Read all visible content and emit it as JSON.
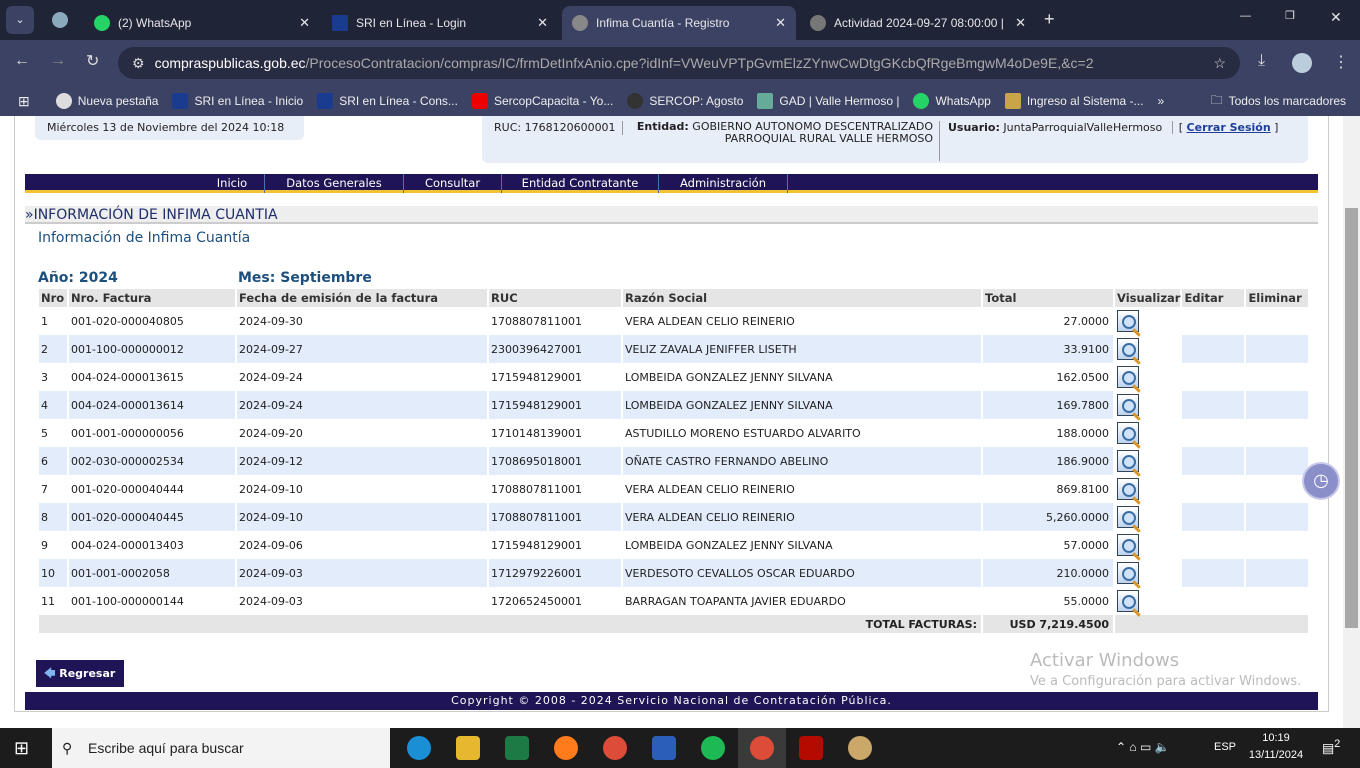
{
  "browser": {
    "tabs": [
      {
        "label": "(2) WhatsApp"
      },
      {
        "label": "SRI en Línea - Login"
      },
      {
        "label": "Infima Cuantía - Registro",
        "active": true
      },
      {
        "label": "Actividad 2024-09-27 08:00:00 |"
      }
    ],
    "url_domain": "compraspublicas.gob.ec",
    "url_path": "/ProcesoContratacion/compras/IC/frmDetInfxAnio.cpe?idInf=VWeuVPTpGvmElzZYnwCwDtgGKcbQfRgeBmgwM4oDe9E,&c=2",
    "bookmarks": [
      "Nueva pestaña",
      "SRI en Línea - Inicio",
      "SRI en Línea - Cons...",
      "SercopCapacita - Yo...",
      "SERCOP: Agosto",
      "GAD | Valle Hermoso |",
      "WhatsApp",
      "Ingreso al Sistema -..."
    ],
    "all_bookmarks": "Todos los marcadores"
  },
  "header": {
    "date": "Miércoles 13 de Noviembre del 2024 10:18",
    "ruc": "RUC: 1768120600001",
    "entidad_label": "Entidad:",
    "entidad": "GOBIERNO AUTONOMO DESCENTRALIZADO PARROQUIAL RURAL VALLE HERMOSO",
    "usuario_label": "Usuario:",
    "usuario": "JuntaParroquialValleHermoso",
    "logout": "Cerrar Sesión"
  },
  "nav": [
    "Inicio",
    "Datos Generales",
    "Consultar",
    "Entidad Contratante",
    "Administración"
  ],
  "section_title": "»INFORMACIÓN DE INFIMA CUANTIA",
  "subtitle": "Información de Infima Cuantía",
  "year": "Año: 2024",
  "month": "Mes: Septiembre",
  "columns": [
    "Nro",
    "Nro. Factura",
    "Fecha de emisión de la factura",
    "RUC",
    "Razón Social",
    "Total",
    "Visualizar",
    "Editar",
    "Eliminar"
  ],
  "rows": [
    [
      "1",
      "001-020-000040805",
      "2024-09-30",
      "1708807811001",
      "VERA ALDEAN CELIO REINERIO",
      "27.0000"
    ],
    [
      "2",
      "001-100-000000012",
      "2024-09-27",
      "2300396427001",
      "VELIZ ZAVALA JENIFFER LISETH",
      "33.9100"
    ],
    [
      "3",
      "004-024-000013615",
      "2024-09-24",
      "1715948129001",
      "LOMBEIDA GONZALEZ JENNY SILVANA",
      "162.0500"
    ],
    [
      "4",
      "004-024-000013614",
      "2024-09-24",
      "1715948129001",
      "LOMBEIDA GONZALEZ JENNY SILVANA",
      "169.7800"
    ],
    [
      "5",
      "001-001-000000056",
      "2024-09-20",
      "1710148139001",
      "ASTUDILLO MORENO ESTUARDO ALVARITO",
      "188.0000"
    ],
    [
      "6",
      "002-030-000002534",
      "2024-09-12",
      "1708695018001",
      "OÑATE CASTRO FERNANDO ABELINO",
      "186.9000"
    ],
    [
      "7",
      "001-020-000040444",
      "2024-09-10",
      "1708807811001",
      "VERA ALDEAN CELIO REINERIO",
      "869.8100"
    ],
    [
      "8",
      "001-020-000040445",
      "2024-09-10",
      "1708807811001",
      "VERA ALDEAN CELIO REINERIO",
      "5,260.0000"
    ],
    [
      "9",
      "004-024-000013403",
      "2024-09-06",
      "1715948129001",
      "LOMBEIDA GONZALEZ JENNY SILVANA",
      "57.0000"
    ],
    [
      "10",
      "001-001-0002058",
      "2024-09-03",
      "1712979226001",
      "VERDESOTO CEVALLOS OSCAR EDUARDO",
      "210.0000"
    ],
    [
      "11",
      "001-100-000000144",
      "2024-09-03",
      "1720652450001",
      "BARRAGAN TOAPANTA JAVIER EDUARDO",
      "55.0000"
    ]
  ],
  "total_label": "TOTAL FACTURAS:",
  "total_value": "USD 7,219.4500",
  "back_button": "Regresar",
  "footer": "Copyright © 2008 - 2024 Servicio Nacional de Contratación Pública.",
  "watermark": {
    "title": "Activar Windows",
    "sub": "Ve a Configuración para activar Windows."
  },
  "taskbar": {
    "search_placeholder": "Escribe aquí para buscar",
    "lang": "ESP",
    "time": "10:19",
    "date": "13/11/2024",
    "notifications": "2"
  }
}
